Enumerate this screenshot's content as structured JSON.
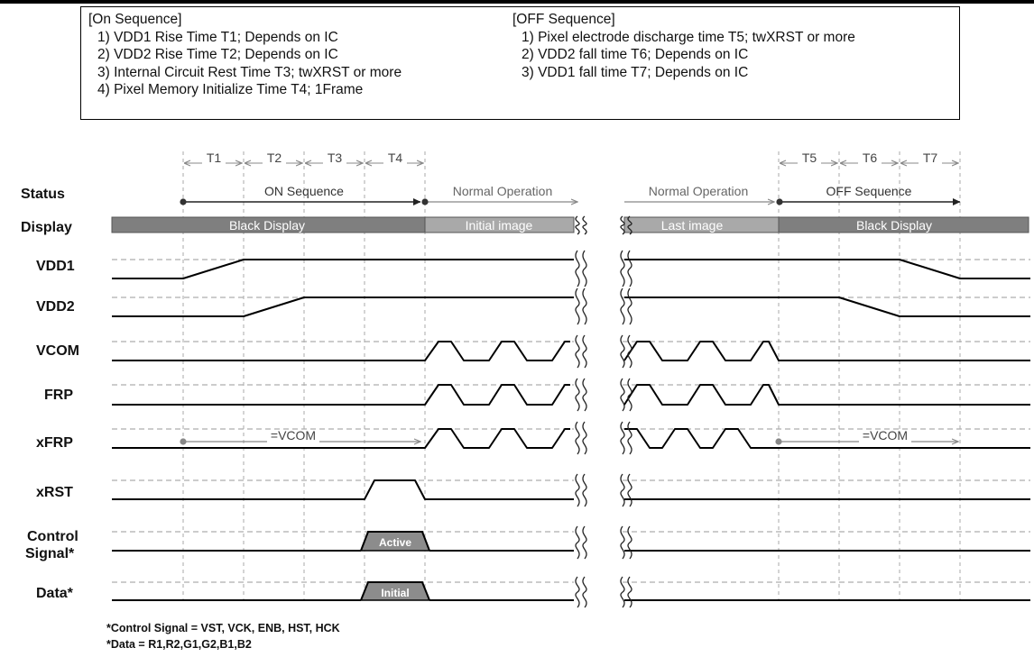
{
  "notes": {
    "on_title": "[On Sequence]",
    "on_items": [
      "1) VDD1 Rise Time T1; Depends on IC",
      "2) VDD2 Rise Time T2; Depends on IC",
      "3) Internal Circuit Rest Time T3; twXRST or more",
      "4) Pixel Memory Initialize Time T4; 1Frame"
    ],
    "off_title": "[OFF Sequence]",
    "off_items": [
      "1) Pixel electrode discharge time T5; twXRST or more",
      "2) VDD2 fall time T6; Depends on IC",
      "3) VDD1 fall time T7; Depends on IC"
    ]
  },
  "timing_labels": [
    "T1",
    "T2",
    "T3",
    "T4",
    "T5",
    "T6",
    "T7"
  ],
  "signals": [
    "Status",
    "Display",
    "VDD1",
    "VDD2",
    "VCOM",
    "FRP",
    "xFRP",
    "xRST",
    "Control\nSignal*",
    "Data*"
  ],
  "status": {
    "on_sequence": "ON Sequence",
    "normal_operation_1": "Normal Operation",
    "normal_operation_2": "Normal Operation",
    "off_sequence": "OFF Sequence"
  },
  "display": {
    "black_display_1": "Black Display",
    "initial_image": "Initial image",
    "last_image": "Last image",
    "black_display_2": "Black Display"
  },
  "vcom_labels": [
    "=VCOM",
    "=VCOM"
  ],
  "badges": {
    "control_signal": "Active",
    "data": "Initial"
  },
  "footnotes": [
    "*Control Signal = VST, VCK, ENB, HST, HCK",
    "*Data = R1,R2,G1,G2,B1,B2"
  ]
}
